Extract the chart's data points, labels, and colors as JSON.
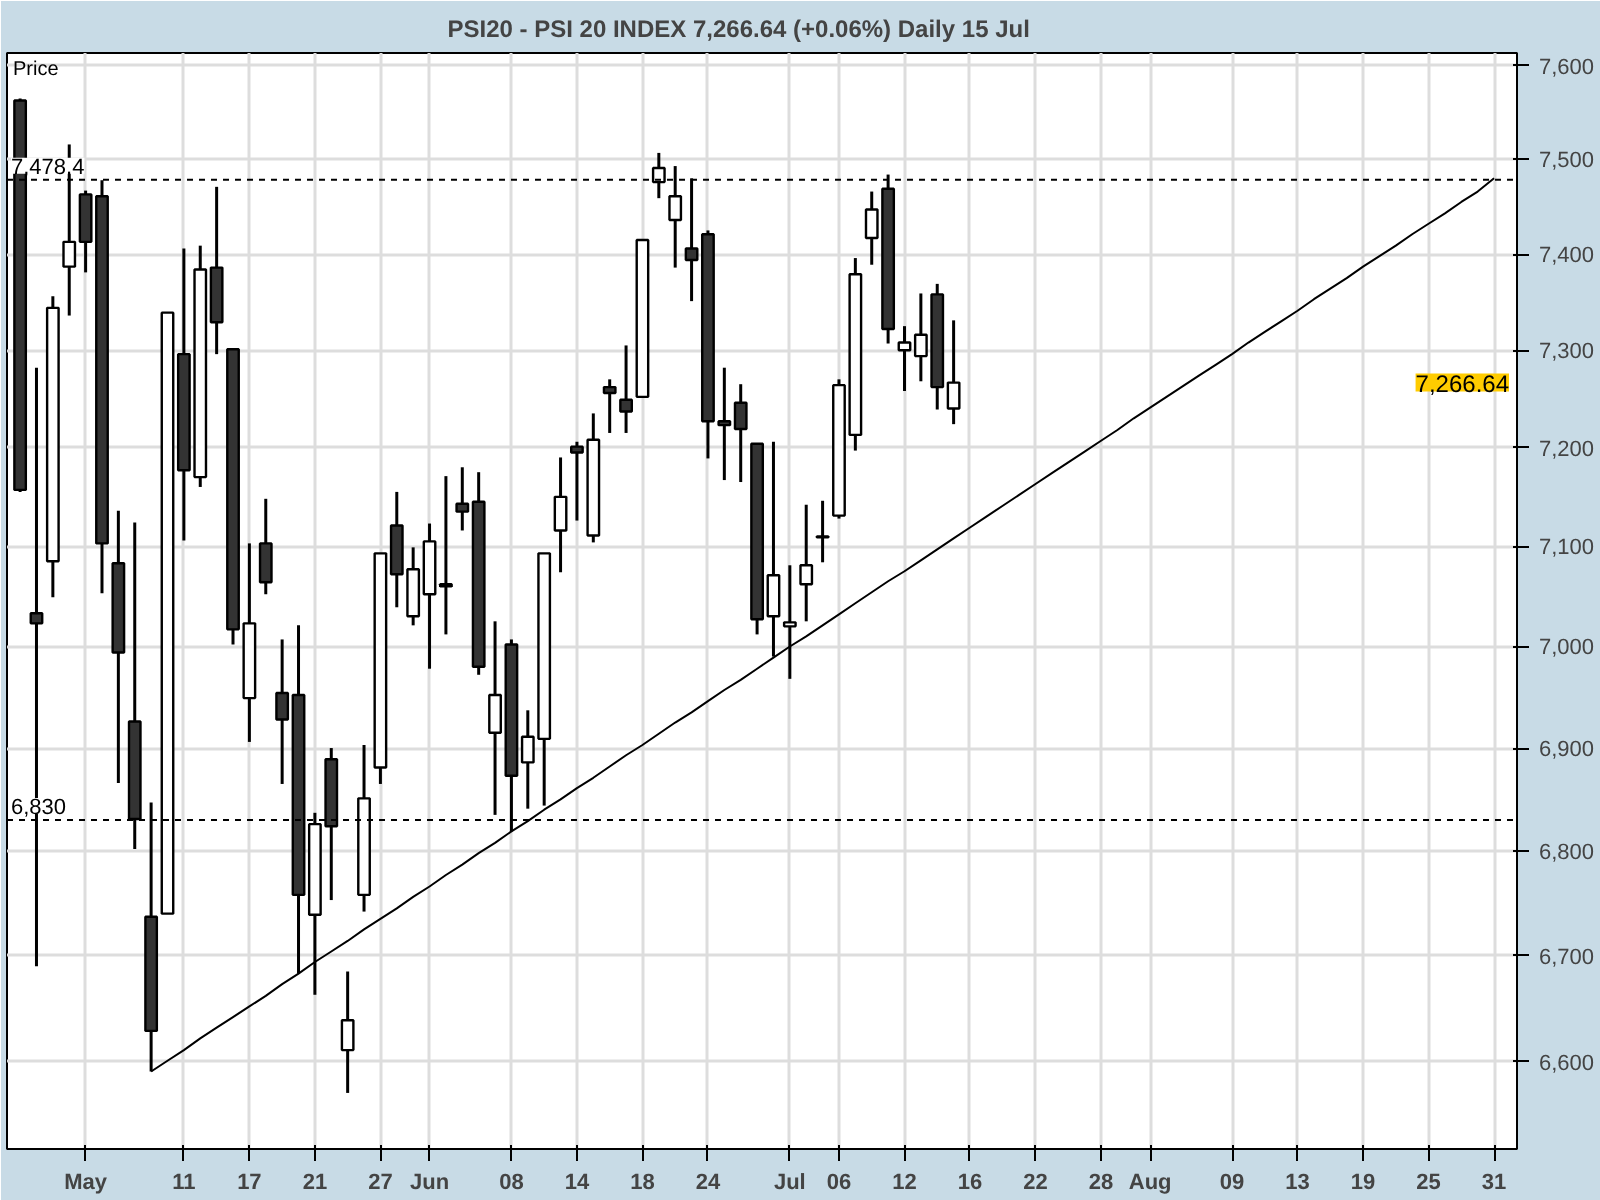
{
  "chart_data": {
    "type": "candlestick",
    "title": "PSI20 - PSI 20 INDEX    7,266.64 (+0.06%)    Daily  15 Jul",
    "ylabel": "Price",
    "categories": [
      null,
      null,
      null,
      null,
      "May",
      null,
      null,
      null,
      null,
      null,
      "11",
      null,
      null,
      null,
      "17",
      null,
      null,
      null,
      "21",
      null,
      null,
      null,
      "27",
      null,
      null,
      "Jun",
      null,
      null,
      null,
      null,
      "08",
      null,
      null,
      null,
      "14",
      null,
      null,
      null,
      "18",
      null,
      null,
      null,
      "24",
      null,
      null,
      null,
      null,
      "Jul",
      null,
      null,
      "06",
      null,
      null,
      null,
      "12",
      null,
      null,
      null,
      "16",
      null,
      null,
      null,
      "22",
      null,
      null,
      null,
      "28",
      null,
      null,
      "Aug",
      null,
      null,
      null,
      null,
      "09",
      null,
      null,
      null,
      "13",
      null,
      null,
      null,
      "19",
      null,
      null,
      null,
      "25",
      null,
      null,
      null,
      "31",
      null
    ],
    "ohlc": [
      [
        7563,
        7565,
        7155,
        7157
      ],
      [
        7033,
        7282,
        6690,
        7023
      ],
      [
        7085,
        7356,
        7049,
        7344
      ],
      [
        7387,
        7516,
        7336,
        7413
      ],
      [
        7463,
        7467,
        7381,
        7413
      ],
      [
        7461,
        7478,
        7053,
        7103
      ],
      [
        7083,
        7136,
        6866,
        6994
      ],
      [
        6926,
        7124,
        6802,
        6831
      ],
      [
        6737,
        6847,
        6591,
        6629
      ],
      [
        6740,
        7339,
        6740,
        7339
      ],
      [
        7296,
        7406,
        7106,
        7177
      ],
      [
        7170,
        7409,
        7160,
        7384
      ],
      [
        7386,
        7471,
        7296,
        7329
      ],
      [
        7301,
        7301,
        7002,
        7017
      ],
      [
        6949,
        7103,
        6906,
        7023
      ],
      [
        7103,
        7148,
        7052,
        7064
      ],
      [
        6954,
        7007,
        6865,
        6928
      ],
      [
        6952,
        7021,
        6683,
        6758
      ],
      [
        6739,
        6837,
        6663,
        6826
      ],
      [
        6889,
        6900,
        6753,
        6824
      ],
      [
        6611,
        6685,
        6571,
        6639
      ],
      [
        6758,
        6903,
        6742,
        6851
      ],
      [
        6881,
        7093,
        6865,
        7093
      ],
      [
        7121,
        7155,
        7039,
        7072
      ],
      [
        7030,
        7099,
        7021,
        7077
      ],
      [
        7052,
        7123,
        6978,
        7105
      ],
      [
        7062,
        7171,
        7012,
        7060
      ],
      [
        7143,
        7180,
        7116,
        7135
      ],
      [
        7145,
        7175,
        6972,
        6980
      ],
      [
        6915,
        7025,
        6835,
        6952
      ],
      [
        7002,
        7007,
        6819,
        6873
      ],
      [
        6886,
        6937,
        6841,
        6911
      ],
      [
        6909,
        7093,
        6844,
        7093
      ],
      [
        7116,
        7190,
        7074,
        7150
      ],
      [
        7201,
        7206,
        7126,
        7195
      ],
      [
        7111,
        7235,
        7104,
        7208
      ],
      [
        7262,
        7270,
        7215,
        7256
      ],
      [
        7249,
        7305,
        7215,
        7237
      ],
      [
        7252,
        7415,
        7252,
        7415
      ],
      [
        7476,
        7507,
        7459,
        7491
      ],
      [
        7436,
        7493,
        7386,
        7461
      ],
      [
        7406,
        7480,
        7351,
        7394
      ],
      [
        7421,
        7425,
        7189,
        7227
      ],
      [
        7227,
        7282,
        7167,
        7223
      ],
      [
        7246,
        7265,
        7165,
        7219
      ],
      [
        7204,
        7204,
        7012,
        7027
      ],
      [
        7030,
        7206,
        6990,
        7071
      ],
      [
        7020,
        7081,
        6968,
        7024
      ],
      [
        7062,
        7142,
        7025,
        7081
      ],
      [
        7110,
        7146,
        7084,
        7109
      ],
      [
        7131,
        7270,
        7128,
        7264
      ],
      [
        7213,
        7396,
        7197,
        7379
      ],
      [
        7417,
        7466,
        7389,
        7447
      ],
      [
        7469,
        7484,
        7307,
        7322
      ],
      [
        7300,
        7325,
        7258,
        7308
      ],
      [
        7294,
        7359,
        7268,
        7316
      ],
      [
        7358,
        7369,
        7239,
        7262
      ],
      [
        7240,
        7331,
        7224,
        7266.64
      ],
      null,
      null,
      null,
      null,
      null,
      null,
      null,
      null,
      null,
      null,
      null,
      null,
      null,
      null,
      null,
      null,
      null,
      null,
      null,
      null,
      null,
      null,
      null,
      null,
      null,
      null,
      null,
      null,
      null,
      null,
      null,
      null,
      null,
      null
    ],
    "colors": [
      "#333333",
      "#333333",
      "#ffffff",
      "#ffffff",
      "#333333",
      "#333333",
      "#333333",
      "#333333",
      "#333333",
      "#ffffff",
      "#333333",
      "#ffffff",
      "#333333",
      "#333333",
      "#ffffff",
      "#333333",
      "#333333",
      "#333333",
      "#ffffff",
      "#333333",
      "#ffffff",
      "#ffffff",
      "#ffffff",
      "#333333",
      "#ffffff",
      "#ffffff",
      "#333333",
      "#333333",
      "#333333",
      "#ffffff",
      "#333333",
      "#ffffff",
      "#ffffff",
      "#ffffff",
      "#333333",
      "#ffffff",
      "#333333",
      "#333333",
      "#ffffff",
      "#ffffff",
      "#ffffff",
      "#333333",
      "#333333",
      "#333333",
      "#333333",
      "#333333",
      "#ffffff",
      "#ffffff",
      "#ffffff",
      "#333333",
      "#ffffff",
      "#ffffff",
      "#ffffff",
      "#333333",
      "#ffffff",
      "#ffffff",
      "#333333",
      "#ffffff",
      null,
      null,
      null,
      null,
      null,
      null,
      null,
      null,
      null,
      null,
      null,
      null,
      null,
      null,
      null,
      null,
      null,
      null,
      null,
      null,
      null,
      null,
      null,
      null,
      null,
      null,
      null,
      null,
      null,
      null,
      null,
      null,
      null,
      null
    ],
    "series": [
      {
        "type": "line",
        "color": "#000000",
        "values": [
          null,
          null,
          null,
          null,
          null,
          null,
          null,
          null,
          6591,
          6601,
          6611,
          6622,
          6632,
          6642,
          6652,
          6662,
          6673,
          6683,
          6694,
          6704,
          6714,
          6725,
          6735,
          6745,
          6756,
          6766,
          6777,
          6787,
          6798,
          6808,
          6819,
          6829,
          6840,
          6850,
          6861,
          6871,
          6882,
          6893,
          6903,
          6914,
          6925,
          6935,
          6946,
          6957,
          6967,
          6978,
          6989,
          7000,
          7010,
          7021,
          7032,
          7043,
          7054,
          7065,
          7075,
          7086,
          7097,
          7108,
          7119,
          7130,
          7141,
          7152,
          7163,
          7174,
          7185,
          7196,
          7207,
          7218,
          7230,
          7241,
          7252,
          7263,
          7274,
          7285,
          7296,
          7308,
          7319,
          7330,
          7341,
          7353,
          7364,
          7375,
          7387,
          7398,
          7409,
          7421,
          7432,
          7443,
          7455,
          7466,
          7480,
          null
        ]
      }
    ],
    "log": "y",
    "ylim": [
      6519,
      7614
    ],
    "yticks": [
      {
        "value": 6600,
        "label": "6,600"
      },
      {
        "value": 6700,
        "label": "6,700"
      },
      {
        "value": 6800,
        "label": "6,800"
      },
      {
        "value": 6900,
        "label": "6,900"
      },
      {
        "value": 7000,
        "label": "7,000"
      },
      {
        "value": 7100,
        "label": "7,100"
      },
      {
        "value": 7200,
        "label": "7,200"
      },
      {
        "value": 7300,
        "label": "7,300"
      },
      {
        "value": 7400,
        "label": "7,400"
      },
      {
        "value": 7500,
        "label": "7,500"
      },
      {
        "value": 7600,
        "label": "7,600"
      }
    ],
    "ref_lines": [
      {
        "axis": "y",
        "value": 7478.4,
        "label": "7,478.4",
        "color": "#000000",
        "line_style": "dashed"
      },
      {
        "axis": "y",
        "value": 6830,
        "label": "6,830",
        "color": "#000000",
        "line_style": "dashed"
      }
    ],
    "annotations": [
      "7,266.64"
    ],
    "grid": true
  }
}
